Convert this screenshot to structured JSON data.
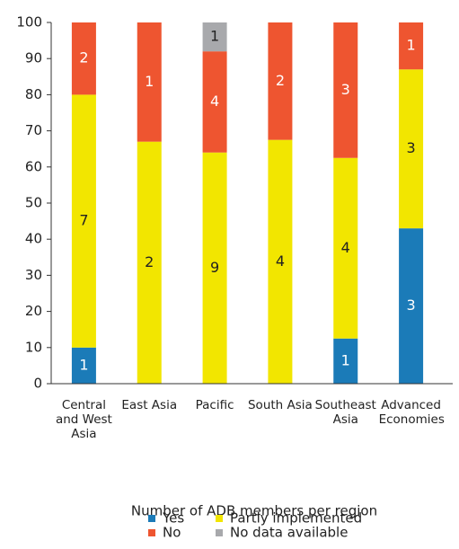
{
  "chart_data": {
    "type": "stacked_bar",
    "x_label": "Number of ADB members per region",
    "categories": [
      "Central and West Asia",
      "East Asia",
      "Pacific",
      "South Asia",
      "Southeast Asia",
      "Advanced Economies"
    ],
    "series": [
      {
        "name": "Yes",
        "color": "#1b7bb8",
        "values": [
          10,
          0,
          0,
          0,
          12.5,
          43
        ],
        "counts": [
          1,
          null,
          null,
          null,
          1,
          3
        ]
      },
      {
        "name": "Partly implemented",
        "color": "#f2e600",
        "values": [
          70,
          67,
          64,
          67.5,
          50,
          44
        ],
        "counts": [
          7,
          2,
          9,
          4,
          4,
          3
        ]
      },
      {
        "name": "No",
        "color": "#ee5530",
        "values": [
          20,
          33,
          28,
          32.5,
          37.5,
          13
        ],
        "counts": [
          2,
          1,
          4,
          2,
          3,
          1
        ]
      },
      {
        "name": "No data available",
        "color": "#a8a9ac",
        "values": [
          0,
          0,
          8,
          0,
          0,
          0
        ],
        "counts": [
          null,
          null,
          1,
          null,
          null,
          null
        ]
      }
    ],
    "ylim": [
      0,
      100
    ],
    "yticks": [
      0,
      10,
      20,
      30,
      40,
      50,
      60,
      70,
      80,
      90,
      100
    ],
    "grid": false
  }
}
